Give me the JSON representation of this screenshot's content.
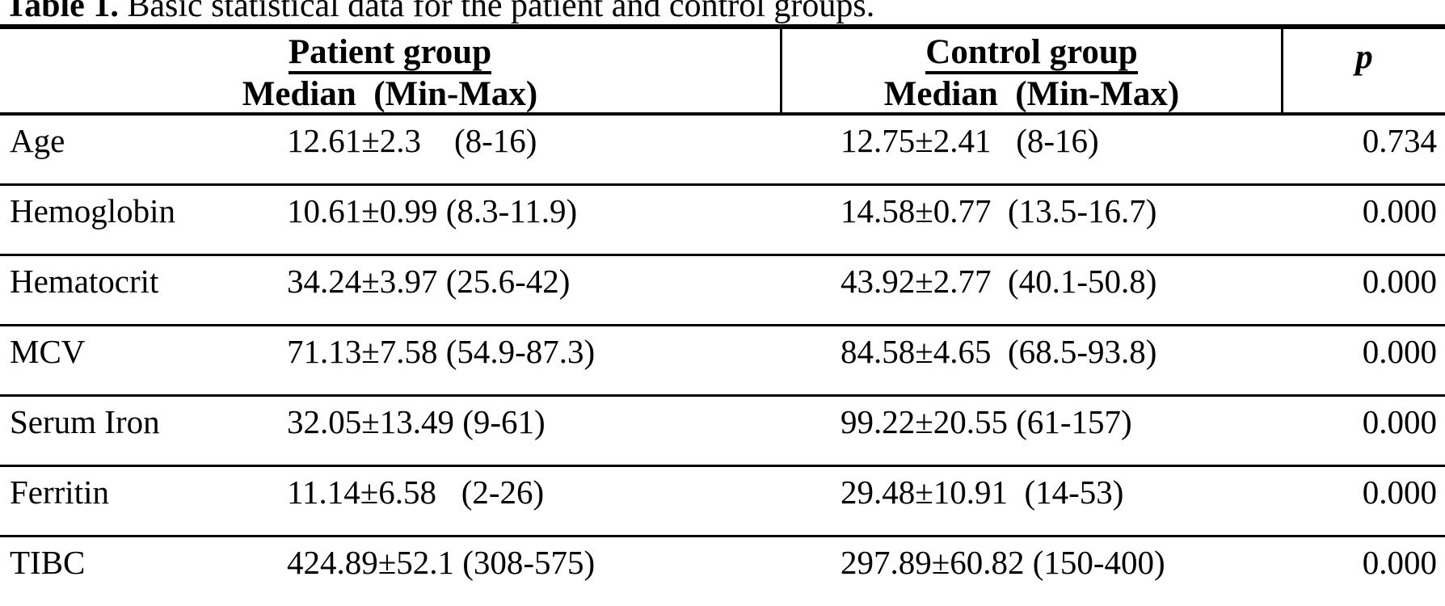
{
  "title": {
    "bold": "Table 1.",
    "rest": " Basic statistical data for the patient and control groups."
  },
  "header": {
    "patient_group": {
      "title": "Patient group",
      "subtitle": "Median  (Min-Max)"
    },
    "control_group": {
      "title": "Control group",
      "subtitle": "Median  (Min-Max)"
    },
    "p_label": "p"
  },
  "rows": [
    {
      "label": "Age",
      "patient": "12.61±2.3    (8-16)",
      "control": "12.75±2.41   (8-16)",
      "p": "0.734"
    },
    {
      "label": "Hemoglobin",
      "patient": "10.61±0.99 (8.3-11.9)",
      "control": "14.58±0.77  (13.5-16.7)",
      "p": "0.000"
    },
    {
      "label": "Hematocrit",
      "patient": "34.24±3.97 (25.6-42)",
      "control": "43.92±2.77  (40.1-50.8)",
      "p": "0.000"
    },
    {
      "label": "MCV",
      "patient": "71.13±7.58 (54.9-87.3)",
      "control": "84.58±4.65  (68.5-93.8)",
      "p": "0.000"
    },
    {
      "label": "Serum Iron",
      "patient": "32.05±13.49 (9-61)",
      "control": "99.22±20.55 (61-157)",
      "p": "0.000"
    },
    {
      "label": "Ferritin",
      "patient": "11.14±6.58   (2-26)",
      "control": "29.48±10.91  (14-53)",
      "p": "0.000"
    },
    {
      "label": "TIBC",
      "patient": "424.89±52.1 (308-575)",
      "control": "297.89±60.82 (150-400)",
      "p": "0.000"
    }
  ]
}
